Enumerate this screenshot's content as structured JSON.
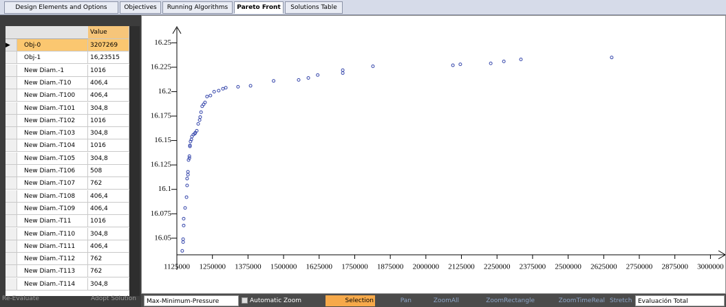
{
  "tabs": [
    "Design Elements and Options",
    "Objectives",
    "Running Algorithms",
    "Pareto Front",
    "Solutions Table"
  ],
  "active_tab": 3,
  "table": {
    "header": "Value",
    "selected_row": 0,
    "rows": [
      [
        "Obj-0",
        "3207269"
      ],
      [
        "Obj-1",
        "16,23515"
      ],
      [
        "New Diam.-1",
        "1016"
      ],
      [
        "New Diam.-T10",
        "406,4"
      ],
      [
        "New Diam.-T100",
        "406,4"
      ],
      [
        "New Diam.-T101",
        "304,8"
      ],
      [
        "New Diam.-T102",
        "1016"
      ],
      [
        "New Diam.-T103",
        "304,8"
      ],
      [
        "New Diam.-T104",
        "1016"
      ],
      [
        "New Diam.-T105",
        "304,8"
      ],
      [
        "New Diam.-T106",
        "508"
      ],
      [
        "New Diam.-T107",
        "762"
      ],
      [
        "New Diam.-T108",
        "406,4"
      ],
      [
        "New Diam.-T109",
        "406,4"
      ],
      [
        "New Diam.-T11",
        "1016"
      ],
      [
        "New Diam.-T110",
        "304,8"
      ],
      [
        "New Diam.-T111",
        "406,4"
      ],
      [
        "New Diam.-T112",
        "762"
      ],
      [
        "New Diam.-T113",
        "762"
      ],
      [
        "New Diam.-T114",
        "304,8"
      ]
    ]
  },
  "left_buttons": [
    "Re-Evaluate",
    "Adopt Solution"
  ],
  "chart_data": {
    "type": "scatter",
    "color": "#3344aa",
    "x": [
      1144000,
      1147000,
      1147000,
      1149000,
      1149000,
      1154000,
      1159000,
      1161000,
      1161000,
      1164000,
      1164000,
      1166000,
      1169000,
      1169000,
      1171000,
      1171000,
      1173000,
      1176000,
      1178000,
      1183000,
      1188000,
      1190000,
      1195000,
      1200000,
      1205000,
      1207000,
      1210000,
      1214000,
      1219000,
      1224000,
      1231000,
      1243000,
      1256000,
      1272000,
      1287000,
      1297000,
      1340000,
      1384000,
      1465000,
      1553000,
      1587000,
      1620000,
      1708000,
      1708000,
      1814000,
      2095000,
      2121000,
      2228000,
      2274000,
      2334000,
      2653000
    ],
    "values": [
      16.037,
      16.046,
      16.049,
      16.063,
      16.07,
      16.081,
      16.092,
      16.104,
      16.111,
      16.115,
      16.118,
      16.13,
      16.132,
      16.134,
      16.144,
      16.145,
      16.149,
      16.151,
      16.154,
      16.156,
      16.157,
      16.158,
      16.16,
      16.167,
      16.171,
      16.174,
      16.179,
      16.185,
      16.187,
      16.189,
      16.195,
      16.196,
      16.2,
      16.201,
      16.203,
      16.204,
      16.205,
      16.206,
      16.211,
      16.212,
      16.214,
      16.217,
      16.219,
      16.222,
      16.226,
      16.227,
      16.228,
      16.229,
      16.231,
      16.233,
      16.235
    ],
    "xlim": [
      1125000,
      3045000
    ],
    "ylim": [
      16.033,
      16.265
    ],
    "xticks": [
      1125000,
      1250000,
      1375000,
      1500000,
      1625000,
      1750000,
      1875000,
      2000000,
      2125000,
      2250000,
      2375000,
      2500000,
      2625000,
      2750000,
      2875000,
      3000000
    ],
    "yticks": [
      16.05,
      16.075,
      16.1,
      16.125,
      16.15,
      16.175,
      16.2,
      16.225,
      16.25
    ]
  },
  "toolbar": {
    "objective": "Max-Minimum-Pressure",
    "checkbox": "Automatic Zoom",
    "buttons": [
      "Selection",
      "Pan",
      "ZoomAll",
      "ZoomRectangle",
      "ZoomTimeReal",
      "Stretch"
    ],
    "evaluation": "Evaluación Total"
  }
}
